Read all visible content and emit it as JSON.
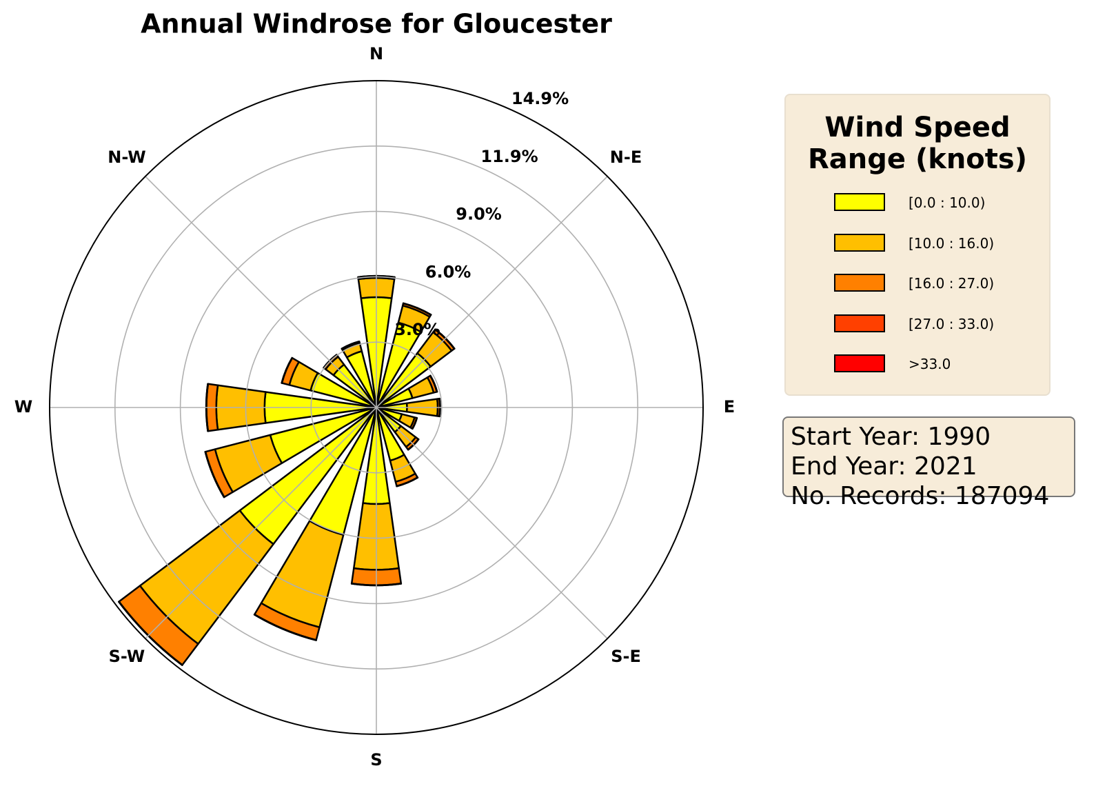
{
  "chart_data": {
    "type": "windrose",
    "title": "Annual Windrose for Gloucester",
    "categories": [
      "N",
      null,
      "N-E",
      null,
      "E",
      null,
      "S-E",
      null,
      "S",
      null,
      "S-W",
      null,
      "W",
      null,
      "N-W",
      null
    ],
    "series": [
      {
        "name": "[0.0 : 10.0)",
        "color": "#ffff00",
        "values": [
          5.03,
          4.0,
          3.1,
          1.7,
          1.4,
          1.2,
          1.4,
          2.5,
          4.4,
          6.0,
          7.8,
          5.0,
          5.1,
          3.1,
          2.45,
          2.65
        ]
      },
      {
        "name": "[10.0 : 16.0)",
        "color": "#ffbf00",
        "values": [
          0.88,
          0.8,
          1.2,
          1.0,
          1.4,
          0.6,
          0.85,
          1.0,
          3.0,
          4.35,
          5.7,
          2.6,
          2.2,
          1.0,
          0.45,
          0.4
        ]
      },
      {
        "name": "[16.0 : 27.0)",
        "color": "#ff8000",
        "values": [
          0.08,
          0.1,
          0.15,
          0.15,
          0.1,
          0.1,
          0.15,
          0.2,
          0.7,
          0.6,
          1.2,
          0.45,
          0.45,
          0.35,
          0.1,
          0.05
        ]
      },
      {
        "name": "[27.0 : 33.0)",
        "color": "#ff4000",
        "values": [
          0.01,
          0.01,
          0.01,
          0.01,
          0.01,
          0.01,
          0.01,
          0.01,
          0.01,
          0.01,
          0.01,
          0.01,
          0.01,
          0.01,
          0.01,
          0.01
        ]
      },
      {
        "name": ">33.0",
        "color": "#ff0000",
        "values": [
          0,
          0,
          0,
          0,
          0,
          0,
          0,
          0,
          0,
          0,
          0,
          0,
          0,
          0,
          0,
          0
        ]
      }
    ],
    "rlim": [
      0,
      14.9
    ],
    "rticks": [
      {
        "value": 2.98,
        "label": "3.0%"
      },
      {
        "value": 5.96,
        "label": "6.0%"
      },
      {
        "value": 8.94,
        "label": "9.0%"
      },
      {
        "value": 11.92,
        "label": "11.9%"
      },
      {
        "value": 14.9,
        "label": "14.9%"
      }
    ],
    "grid": true,
    "legend_title": "Wind Speed\nRange (knots)",
    "legend_position": "right",
    "info_lines": [
      "Start Year: 1990",
      "End Year: 2021",
      "No. Records: 187094"
    ]
  }
}
